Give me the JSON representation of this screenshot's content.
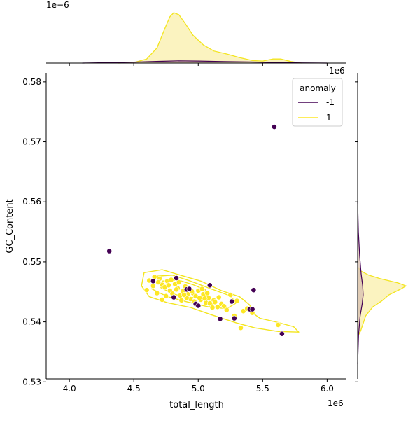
{
  "chart_data": {
    "type": "scatter",
    "xlabel": "total_length",
    "ylabel": "GC_Content",
    "x_offset_label": "1e6",
    "y_offset_label": "",
    "top_marginal_offset_label": "1e−6",
    "right_marginal_offset_label": "1e6",
    "xlim": [
      3.82,
      6.15
    ],
    "ylim": [
      0.5305,
      0.5815
    ],
    "x_ticks": [
      {
        "value": 4.0,
        "label": "4.0"
      },
      {
        "value": 4.5,
        "label": "4.5"
      },
      {
        "value": 5.0,
        "label": "5.0"
      },
      {
        "value": 5.5,
        "label": "5.5"
      },
      {
        "value": 6.0,
        "label": "6.0"
      }
    ],
    "y_ticks": [
      {
        "value": 0.53,
        "label": "0.53"
      },
      {
        "value": 0.54,
        "label": "0.54"
      },
      {
        "value": 0.55,
        "label": "0.55"
      },
      {
        "value": 0.56,
        "label": "0.56"
      },
      {
        "value": 0.57,
        "label": "0.57"
      },
      {
        "value": 0.58,
        "label": "0.58"
      }
    ],
    "legend": {
      "title": "anomaly",
      "placement": "top-right",
      "entries": [
        {
          "label": "-1",
          "color": "#440154"
        },
        {
          "label": "1",
          "color": "#fde725"
        }
      ]
    },
    "colors": {
      "normal_point": "#fde725",
      "anomaly_point": "#440154",
      "normal_contour": "#f3e51f",
      "normal_fill": "#fbf3c0",
      "anomaly_fill": "#d9c2b2",
      "anomaly_line": "#440154"
    },
    "series": [
      {
        "name": "1",
        "points": [
          [
            4.62,
            0.5469
          ],
          [
            4.66,
            0.5475
          ],
          [
            4.7,
            0.5472
          ],
          [
            4.72,
            0.5462
          ],
          [
            4.74,
            0.5458
          ],
          [
            4.76,
            0.5468
          ],
          [
            4.78,
            0.5452
          ],
          [
            4.8,
            0.5447
          ],
          [
            4.82,
            0.5463
          ],
          [
            4.84,
            0.5456
          ],
          [
            4.86,
            0.5444
          ],
          [
            4.88,
            0.5451
          ],
          [
            4.9,
            0.5459
          ],
          [
            4.92,
            0.5446
          ],
          [
            4.94,
            0.5438
          ],
          [
            4.96,
            0.5448
          ],
          [
            4.98,
            0.5443
          ],
          [
            5.0,
            0.5452
          ],
          [
            5.02,
            0.5437
          ],
          [
            5.04,
            0.5446
          ],
          [
            5.06,
            0.5432
          ],
          [
            5.08,
            0.544
          ],
          [
            5.1,
            0.5428
          ],
          [
            5.12,
            0.5436
          ],
          [
            5.15,
            0.5425
          ],
          [
            5.18,
            0.543
          ],
          [
            5.22,
            0.542
          ],
          [
            5.25,
            0.5445
          ],
          [
            5.3,
            0.5435
          ],
          [
            5.35,
            0.5418
          ],
          [
            4.6,
            0.5453
          ],
          [
            4.68,
            0.5448
          ],
          [
            4.72,
            0.5437
          ],
          [
            4.79,
            0.547
          ],
          [
            4.85,
            0.5466
          ],
          [
            4.91,
            0.544
          ],
          [
            4.97,
            0.5434
          ],
          [
            5.03,
            0.5455
          ],
          [
            5.09,
            0.5431
          ],
          [
            5.16,
            0.5441
          ],
          [
            4.75,
            0.5443
          ],
          [
            4.81,
            0.5441
          ],
          [
            4.87,
            0.5436
          ],
          [
            4.93,
            0.5456
          ],
          [
            4.99,
            0.5429
          ],
          [
            5.05,
            0.5439
          ],
          [
            5.11,
            0.5424
          ],
          [
            5.2,
            0.5426
          ],
          [
            5.28,
            0.541
          ],
          [
            5.33,
            0.539
          ],
          [
            5.62,
            0.5395
          ],
          [
            5.42,
            0.5415
          ],
          [
            5.38,
            0.5422
          ],
          [
            4.65,
            0.546
          ],
          [
            4.69,
            0.5466
          ],
          [
            4.77,
            0.5461
          ],
          [
            4.83,
            0.5454
          ],
          [
            4.89,
            0.5445
          ],
          [
            4.95,
            0.5451
          ],
          [
            5.01,
            0.544
          ],
          [
            5.07,
            0.5448
          ],
          [
            5.13,
            0.5433
          ]
        ]
      },
      {
        "name": "-1",
        "points": [
          [
            4.31,
            0.5518
          ],
          [
            5.59,
            0.5725
          ],
          [
            4.65,
            0.5468
          ],
          [
            4.83,
            0.5473
          ],
          [
            4.81,
            0.5441
          ],
          [
            4.91,
            0.5454
          ],
          [
            4.93,
            0.5455
          ],
          [
            4.98,
            0.543
          ],
          [
            5.0,
            0.5427
          ],
          [
            5.09,
            0.5461
          ],
          [
            5.17,
            0.5405
          ],
          [
            5.26,
            0.5434
          ],
          [
            5.28,
            0.5406
          ],
          [
            5.4,
            0.5421
          ],
          [
            5.42,
            0.5421
          ],
          [
            5.43,
            0.5453
          ],
          [
            5.65,
            0.538
          ]
        ]
      }
    ],
    "top_marginal": {
      "normal_density": [
        [
          4.38,
          0.0
        ],
        [
          4.5,
          0.01
        ],
        [
          4.6,
          0.08
        ],
        [
          4.68,
          0.3
        ],
        [
          4.74,
          0.68
        ],
        [
          4.78,
          0.92
        ],
        [
          4.81,
          1.0
        ],
        [
          4.85,
          0.96
        ],
        [
          4.9,
          0.78
        ],
        [
          4.96,
          0.55
        ],
        [
          5.04,
          0.36
        ],
        [
          5.12,
          0.24
        ],
        [
          5.22,
          0.18
        ],
        [
          5.32,
          0.11
        ],
        [
          5.42,
          0.05
        ],
        [
          5.5,
          0.04
        ],
        [
          5.58,
          0.08
        ],
        [
          5.64,
          0.08
        ],
        [
          5.72,
          0.03
        ],
        [
          5.8,
          0.0
        ]
      ],
      "anomaly_density": [
        [
          4.1,
          0.0
        ],
        [
          4.3,
          0.01
        ],
        [
          4.5,
          0.02
        ],
        [
          4.7,
          0.035
        ],
        [
          4.85,
          0.045
        ],
        [
          5.0,
          0.04
        ],
        [
          5.2,
          0.03
        ],
        [
          5.4,
          0.022
        ],
        [
          5.6,
          0.012
        ],
        [
          5.8,
          0.004
        ],
        [
          6.0,
          0.0
        ]
      ]
    },
    "right_marginal": {
      "normal_density": [
        [
          0.5375,
          0.0
        ],
        [
          0.5385,
          0.06
        ],
        [
          0.5395,
          0.1
        ],
        [
          0.541,
          0.16
        ],
        [
          0.5425,
          0.3
        ],
        [
          0.5435,
          0.48
        ],
        [
          0.5445,
          0.62
        ],
        [
          0.5455,
          0.86
        ],
        [
          0.546,
          0.96
        ],
        [
          0.5465,
          0.8
        ],
        [
          0.5472,
          0.45
        ],
        [
          0.5478,
          0.22
        ],
        [
          0.5485,
          0.06
        ],
        [
          0.5492,
          0.0
        ]
      ],
      "anomaly_density": [
        [
          0.533,
          0.0
        ],
        [
          0.538,
          0.02
        ],
        [
          0.541,
          0.05
        ],
        [
          0.543,
          0.09
        ],
        [
          0.5445,
          0.11
        ],
        [
          0.546,
          0.1
        ],
        [
          0.548,
          0.07
        ],
        [
          0.551,
          0.04
        ],
        [
          0.555,
          0.015
        ],
        [
          0.56,
          0.0
        ]
      ]
    }
  }
}
